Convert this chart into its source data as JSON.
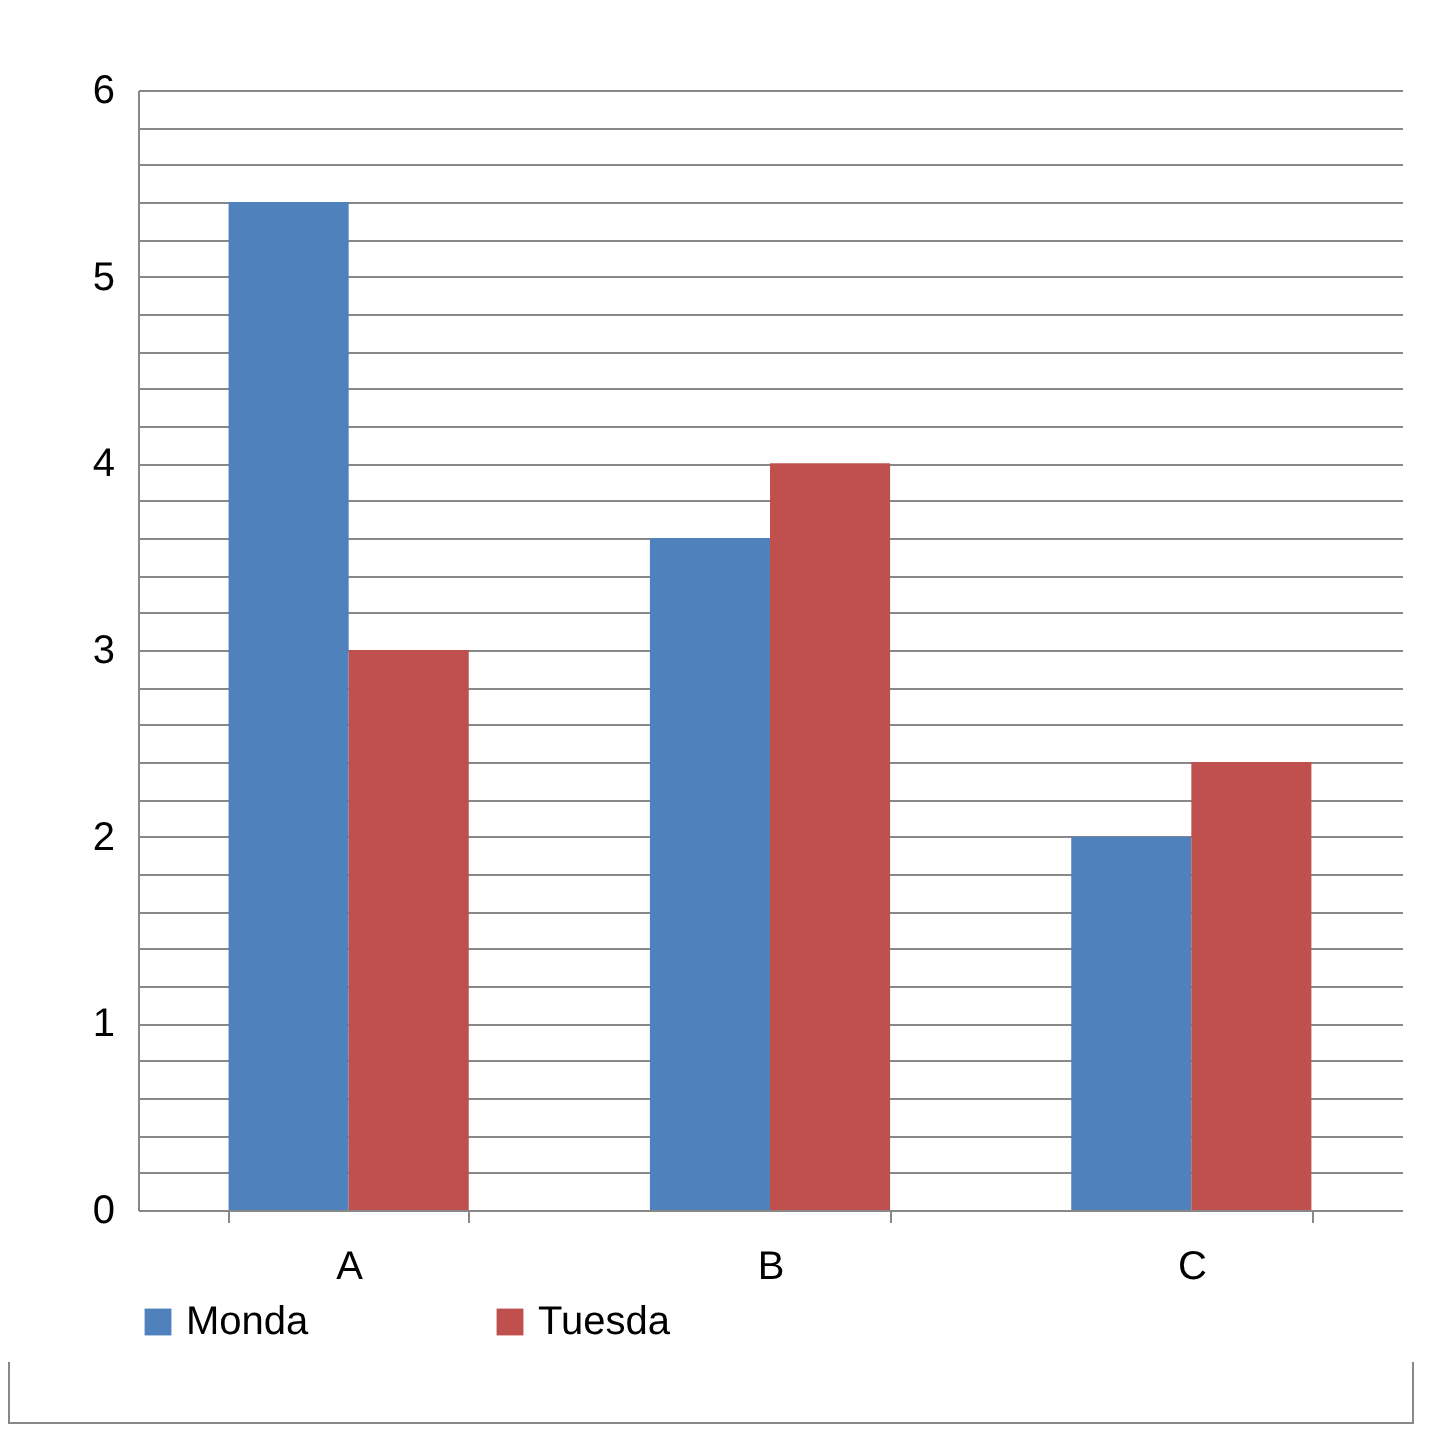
{
  "chart_data": {
    "type": "bar",
    "categories": [
      "A",
      "B",
      "C"
    ],
    "series": [
      {
        "name": "Monda",
        "color": "#4f81bd",
        "values": [
          5.4,
          3.6,
          2
        ]
      },
      {
        "name": "Tuesda",
        "color": "#c0504d",
        "values": [
          3,
          4,
          2.4
        ]
      }
    ],
    "ylim": [
      0,
      6
    ],
    "yticks": [
      0,
      {
        "value": 0.2,
        "label": null
      },
      {
        "value": 0.4,
        "label": null
      },
      {
        "value": 0.6,
        "label": null
      },
      {
        "value": 0.8,
        "label": null
      },
      1,
      {
        "value": 1.2,
        "label": null
      },
      {
        "value": 1.4,
        "label": null
      },
      {
        "value": 1.6,
        "label": null
      },
      {
        "value": 1.8,
        "label": null
      },
      2,
      {
        "value": 2.2,
        "label": null
      },
      {
        "value": 2.4,
        "label": null
      },
      {
        "value": 2.6,
        "label": null
      },
      {
        "value": 2.8,
        "label": null
      },
      3,
      {
        "value": 3.2,
        "label": null
      },
      {
        "value": 3.4,
        "label": null
      },
      {
        "value": 3.6,
        "label": null
      },
      {
        "value": 3.8,
        "label": null
      },
      4,
      {
        "value": 4.2,
        "label": null
      },
      {
        "value": 4.4,
        "label": null
      },
      {
        "value": 4.6,
        "label": null
      },
      {
        "value": 4.8,
        "label": null
      },
      5,
      {
        "value": 5.2,
        "label": null
      },
      {
        "value": 5.4,
        "label": null
      },
      {
        "value": 5.6,
        "label": null
      },
      {
        "value": 5.8,
        "label": null
      },
      6
    ],
    "grid": true,
    "legend": "bottom"
  }
}
